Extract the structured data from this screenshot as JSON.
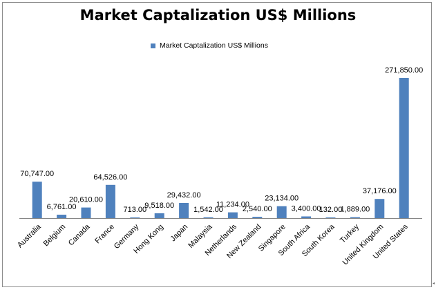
{
  "chart_data": {
    "type": "bar",
    "title": "Market Captalization US$ Millions",
    "xlabel": "",
    "ylabel": "",
    "legend_position": "top-center",
    "grid": false,
    "bar_color": "#4f81bd",
    "series": [
      {
        "name": "Market Captalization  US$  Millions",
        "values": [
          70747,
          6761,
          20610,
          64526,
          713,
          9518,
          29432,
          1542,
          11234,
          2540,
          23134,
          3400,
          132,
          1889,
          37176,
          271850
        ]
      }
    ],
    "categories": [
      "Australia",
      "Belgium",
      "Canada",
      "France",
      "Germany",
      "Hong Kong",
      "Japan",
      "Malaysia",
      "Netherlands",
      "New Zealand",
      "Singapore",
      "South Africa",
      "South Korea",
      "Turkey",
      "United Kingdom",
      "United States"
    ],
    "data_labels": [
      "70,747.00",
      "6,761.00",
      "20,610.00",
      "64,526.00",
      "713.00",
      "9,518.00",
      "29,432.00",
      "1,542.00",
      "11,234.00",
      "2,540.00",
      "23,134.00",
      "3,400.00",
      "132.00",
      "1,889.00",
      "37,176.00",
      "271,850.00"
    ],
    "ylim": [
      0,
      271850
    ]
  }
}
